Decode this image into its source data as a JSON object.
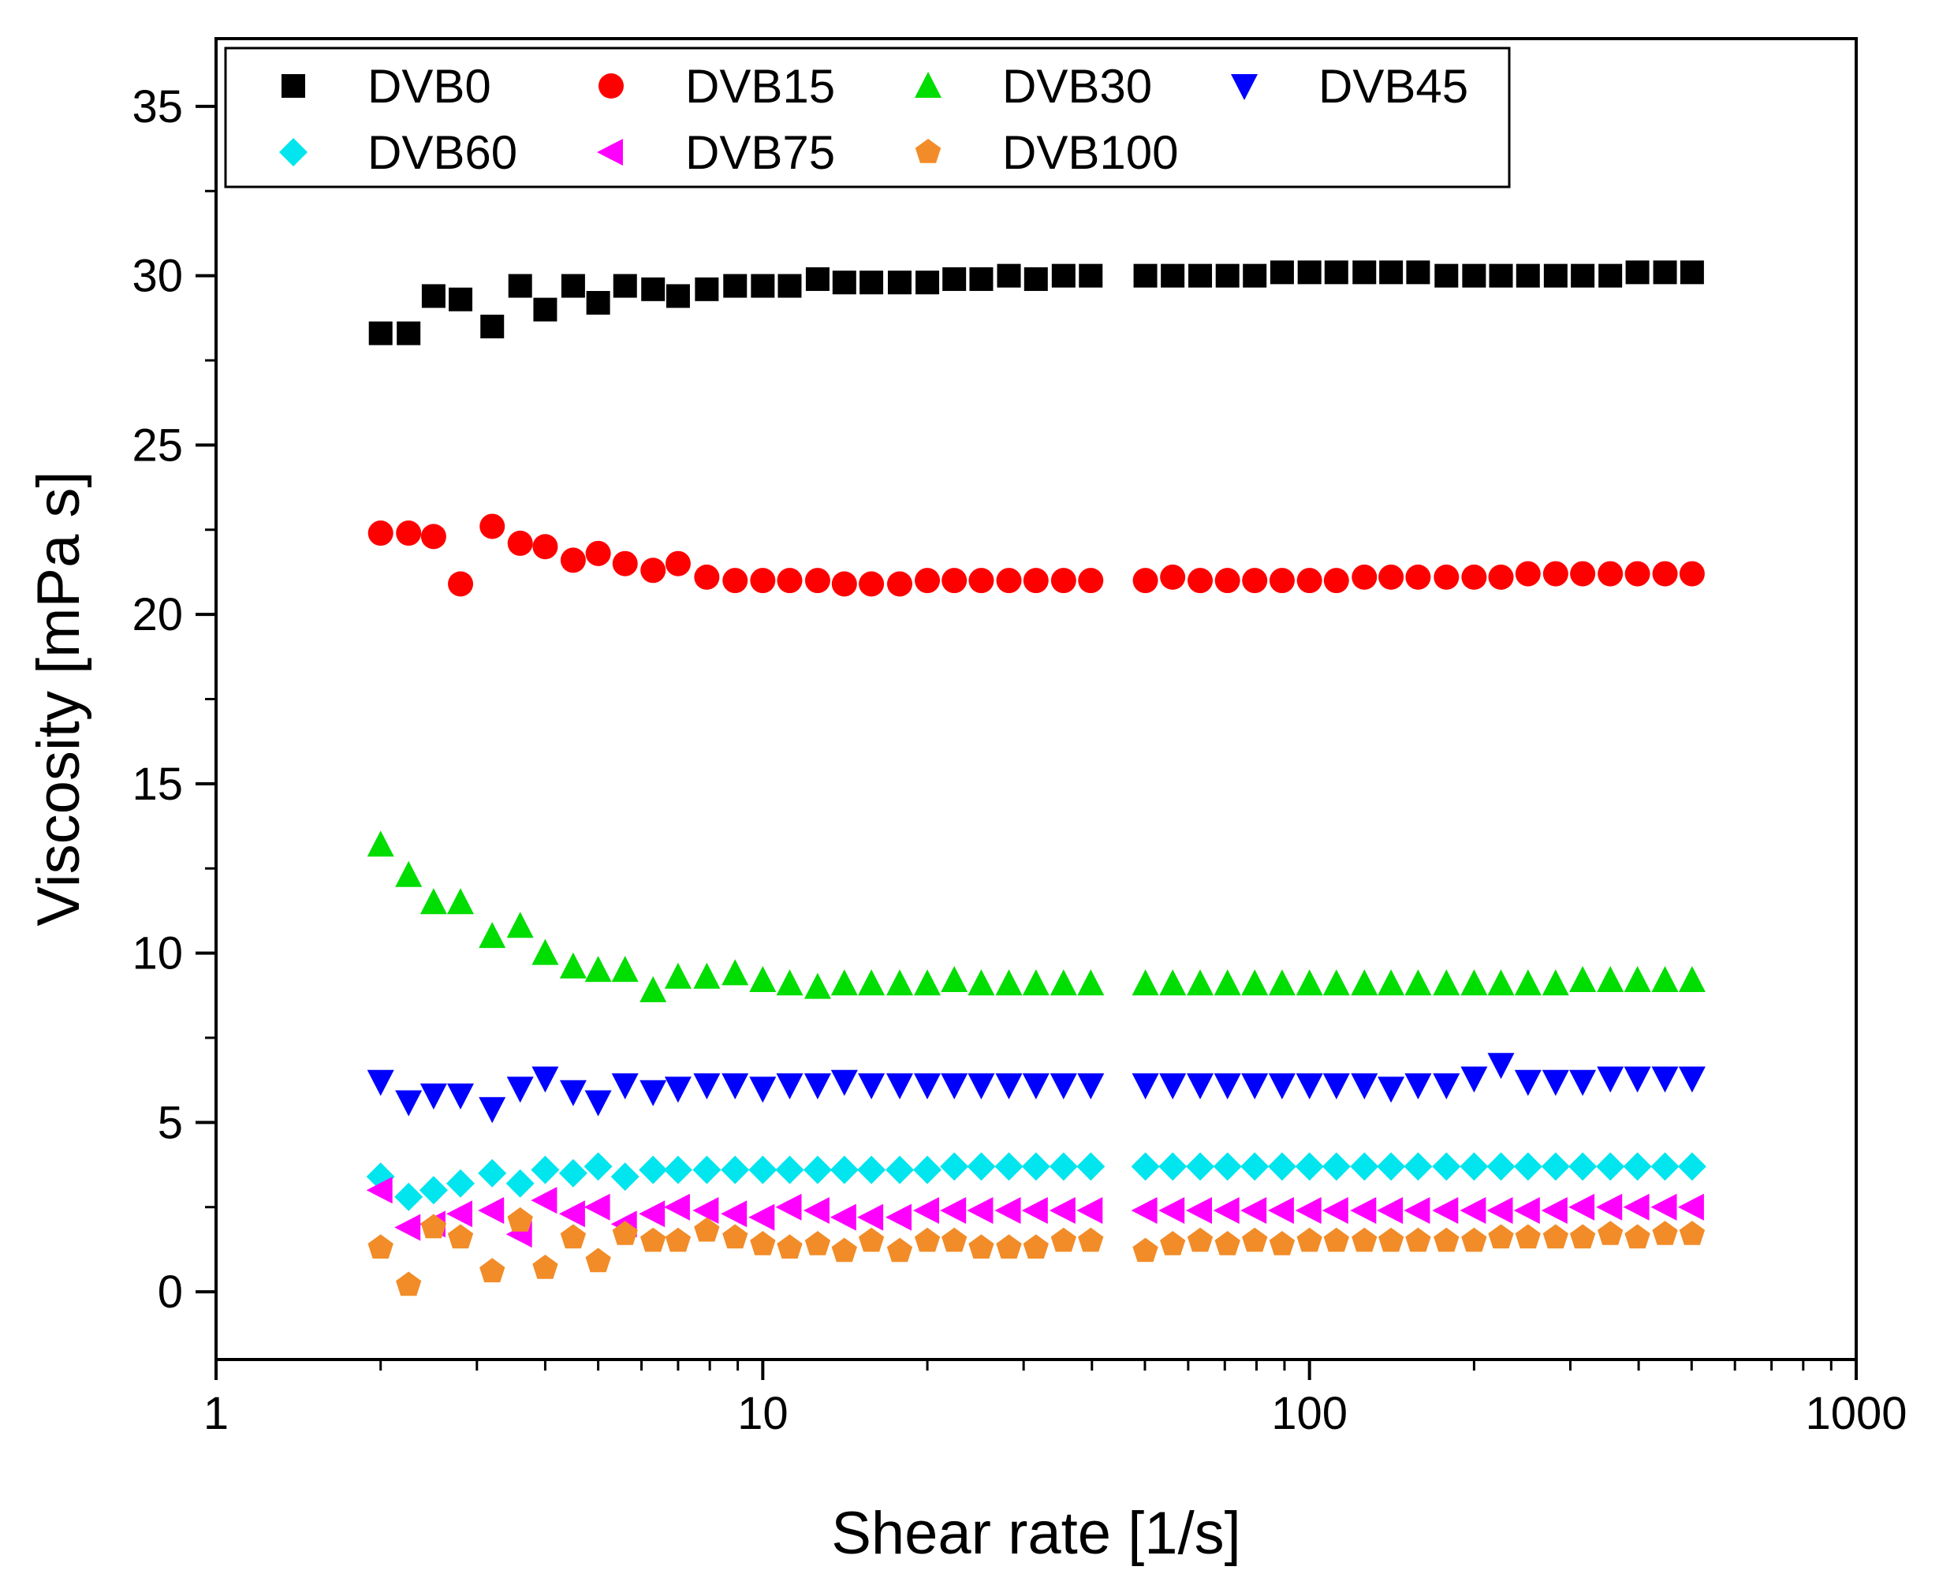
{
  "chart_data": {
    "type": "scatter",
    "title": "",
    "xlabel": "Shear rate [1/s]",
    "ylabel": "Viscosity [mPa s]",
    "xscale": "log",
    "xlim": [
      1,
      1000
    ],
    "ylim": [
      -2,
      37
    ],
    "xticks": [
      1,
      10,
      100,
      1000
    ],
    "xtick_labels": [
      "1",
      "10",
      "100",
      "1000"
    ],
    "yticks": [
      0,
      5,
      10,
      15,
      20,
      25,
      30,
      35
    ],
    "ytick_labels": [
      "0",
      "5",
      "10",
      "15",
      "20",
      "25",
      "30",
      "35"
    ],
    "legend_position": "top",
    "x": [
      2.0,
      2.25,
      2.5,
      2.8,
      3.2,
      3.6,
      4.0,
      4.5,
      5.0,
      5.6,
      6.3,
      7.0,
      7.9,
      8.9,
      10.0,
      11.2,
      12.6,
      14.1,
      15.8,
      17.8,
      20.0,
      22.4,
      25.1,
      28.2,
      31.6,
      35.5,
      39.8,
      50.1,
      56.2,
      63.1,
      70.8,
      79.4,
      89.1,
      100,
      112,
      126,
      141,
      158,
      178,
      200,
      224,
      251,
      282,
      316,
      355,
      398,
      447,
      501
    ],
    "series": [
      {
        "name": "DVB0",
        "marker": "square",
        "color": "#000000",
        "values": [
          28.3,
          28.3,
          29.4,
          29.3,
          28.5,
          29.7,
          29.0,
          29.7,
          29.2,
          29.7,
          29.6,
          29.4,
          29.6,
          29.7,
          29.7,
          29.7,
          29.9,
          29.8,
          29.8,
          29.8,
          29.8,
          29.9,
          29.9,
          30.0,
          29.9,
          30.0,
          30.0,
          30.0,
          30.0,
          30.0,
          30.0,
          30.0,
          30.1,
          30.1,
          30.1,
          30.1,
          30.1,
          30.1,
          30.0,
          30.0,
          30.0,
          30.0,
          30.0,
          30.0,
          30.0,
          30.1,
          30.1,
          30.1
        ]
      },
      {
        "name": "DVB15",
        "marker": "circle",
        "color": "#ff0000",
        "values": [
          22.4,
          22.4,
          22.3,
          20.9,
          22.6,
          22.1,
          22.0,
          21.6,
          21.8,
          21.5,
          21.3,
          21.5,
          21.1,
          21.0,
          21.0,
          21.0,
          21.0,
          20.9,
          20.9,
          20.9,
          21.0,
          21.0,
          21.0,
          21.0,
          21.0,
          21.0,
          21.0,
          21.0,
          21.1,
          21.0,
          21.0,
          21.0,
          21.0,
          21.0,
          21.0,
          21.1,
          21.1,
          21.1,
          21.1,
          21.1,
          21.1,
          21.2,
          21.2,
          21.2,
          21.2,
          21.2,
          21.2,
          21.2
        ]
      },
      {
        "name": "DVB30",
        "marker": "triangle-up",
        "color": "#00dd00",
        "values": [
          13.2,
          12.3,
          11.5,
          11.5,
          10.5,
          10.8,
          10.0,
          9.6,
          9.5,
          9.5,
          8.9,
          9.3,
          9.3,
          9.4,
          9.2,
          9.1,
          9.0,
          9.1,
          9.1,
          9.1,
          9.1,
          9.2,
          9.1,
          9.1,
          9.1,
          9.1,
          9.1,
          9.1,
          9.1,
          9.1,
          9.1,
          9.1,
          9.1,
          9.1,
          9.1,
          9.1,
          9.1,
          9.1,
          9.1,
          9.1,
          9.1,
          9.1,
          9.1,
          9.2,
          9.2,
          9.2,
          9.2,
          9.2
        ]
      },
      {
        "name": "DVB45",
        "marker": "triangle-down",
        "color": "#0000ff",
        "values": [
          6.2,
          5.6,
          5.8,
          5.8,
          5.4,
          6.0,
          6.3,
          5.9,
          5.6,
          6.1,
          5.9,
          6.0,
          6.1,
          6.1,
          6.0,
          6.1,
          6.1,
          6.2,
          6.1,
          6.1,
          6.1,
          6.1,
          6.1,
          6.1,
          6.1,
          6.1,
          6.1,
          6.1,
          6.1,
          6.1,
          6.1,
          6.1,
          6.1,
          6.1,
          6.1,
          6.1,
          6.0,
          6.1,
          6.1,
          6.3,
          6.7,
          6.2,
          6.2,
          6.2,
          6.3,
          6.3,
          6.3,
          6.3
        ]
      },
      {
        "name": "DVB60",
        "marker": "diamond",
        "color": "#00e5ee",
        "values": [
          3.4,
          2.8,
          3.0,
          3.2,
          3.5,
          3.2,
          3.6,
          3.5,
          3.7,
          3.4,
          3.6,
          3.6,
          3.6,
          3.6,
          3.6,
          3.6,
          3.6,
          3.6,
          3.6,
          3.6,
          3.6,
          3.7,
          3.7,
          3.7,
          3.7,
          3.7,
          3.7,
          3.7,
          3.7,
          3.7,
          3.7,
          3.7,
          3.7,
          3.7,
          3.7,
          3.7,
          3.7,
          3.7,
          3.7,
          3.7,
          3.7,
          3.7,
          3.7,
          3.7,
          3.7,
          3.7,
          3.7,
          3.7
        ]
      },
      {
        "name": "DVB75",
        "marker": "triangle-left",
        "color": "#ff00ff",
        "values": [
          3.0,
          1.9,
          2.0,
          2.3,
          2.4,
          1.7,
          2.7,
          2.3,
          2.5,
          2.0,
          2.3,
          2.5,
          2.4,
          2.3,
          2.2,
          2.5,
          2.4,
          2.2,
          2.2,
          2.2,
          2.4,
          2.4,
          2.4,
          2.4,
          2.4,
          2.4,
          2.4,
          2.4,
          2.4,
          2.4,
          2.4,
          2.4,
          2.4,
          2.4,
          2.4,
          2.4,
          2.4,
          2.4,
          2.4,
          2.4,
          2.4,
          2.4,
          2.4,
          2.5,
          2.5,
          2.5,
          2.5,
          2.5
        ]
      },
      {
        "name": "DVB100",
        "marker": "pentagon",
        "color": "#f28c28",
        "values": [
          1.3,
          0.2,
          1.9,
          1.6,
          0.6,
          2.1,
          0.7,
          1.6,
          0.9,
          1.7,
          1.5,
          1.5,
          1.8,
          1.6,
          1.4,
          1.3,
          1.4,
          1.2,
          1.5,
          1.2,
          1.5,
          1.5,
          1.3,
          1.3,
          1.3,
          1.5,
          1.5,
          1.2,
          1.4,
          1.5,
          1.4,
          1.5,
          1.4,
          1.5,
          1.5,
          1.5,
          1.5,
          1.5,
          1.5,
          1.5,
          1.6,
          1.6,
          1.6,
          1.6,
          1.7,
          1.6,
          1.7,
          1.7
        ]
      }
    ]
  }
}
